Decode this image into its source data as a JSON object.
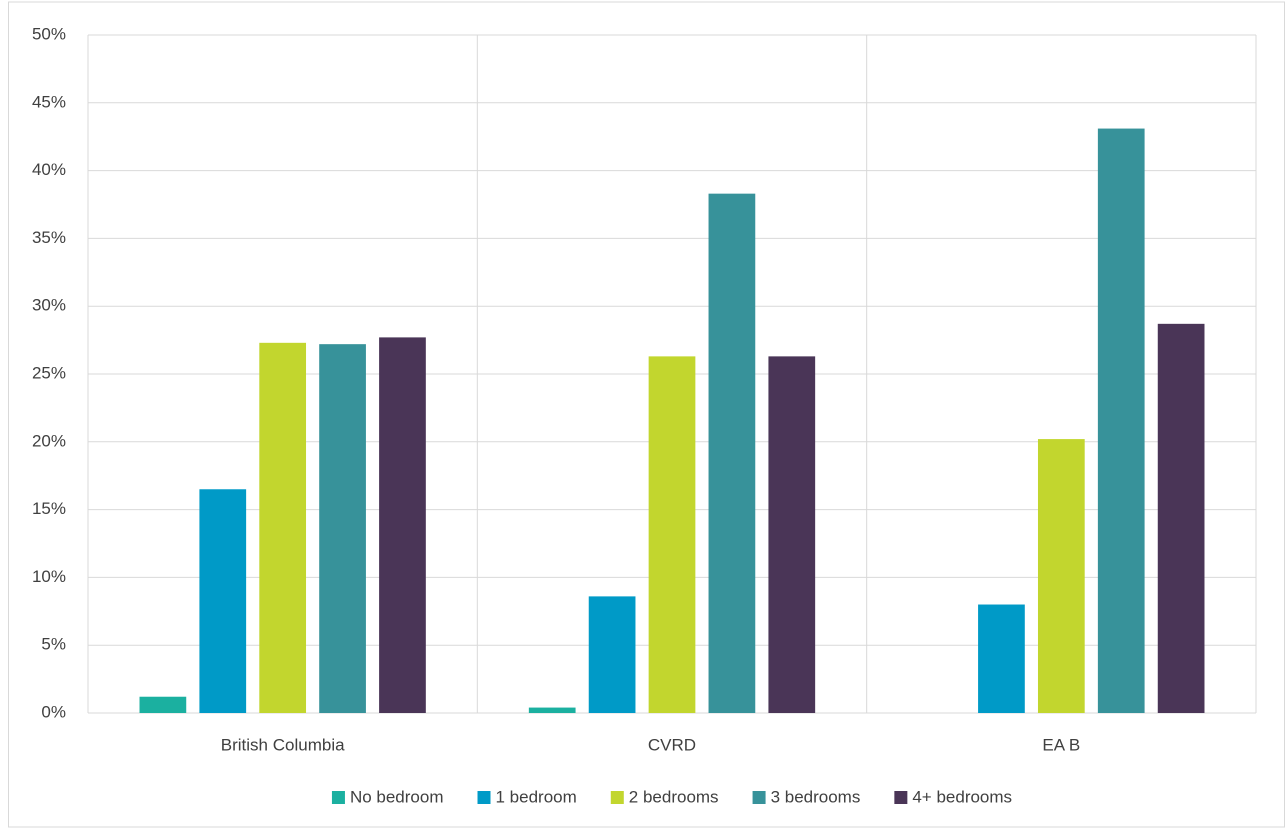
{
  "chart_data": {
    "type": "bar",
    "categories": [
      "British Columbia",
      "CVRD",
      "EA B"
    ],
    "series": [
      {
        "name": "No bedroom",
        "color": "#1bb0a0",
        "values": [
          1.2,
          0.4,
          0
        ]
      },
      {
        "name": "1 bedroom",
        "color": "#009ac7",
        "values": [
          16.5,
          8.6,
          8.0
        ]
      },
      {
        "name": "2 bedrooms",
        "color": "#c2d62e",
        "values": [
          27.3,
          26.3,
          20.2
        ]
      },
      {
        "name": "3 bedrooms",
        "color": "#37929a",
        "values": [
          27.2,
          38.3,
          43.1
        ]
      },
      {
        "name": "4+ bedrooms",
        "color": "#4a3557",
        "values": [
          27.7,
          26.3,
          28.7
        ]
      }
    ],
    "ylim": [
      0,
      50
    ],
    "yticks": [
      {
        "value": 0,
        "label": "0%"
      },
      {
        "value": 5,
        "label": "5%"
      },
      {
        "value": 10,
        "label": "10%"
      },
      {
        "value": 15,
        "label": "15%"
      },
      {
        "value": 20,
        "label": "20%"
      },
      {
        "value": 25,
        "label": "25%"
      },
      {
        "value": 30,
        "label": "30%"
      },
      {
        "value": 35,
        "label": "35%"
      },
      {
        "value": 40,
        "label": "40%"
      },
      {
        "value": 45,
        "label": "45%"
      },
      {
        "value": 50,
        "label": "50%"
      }
    ],
    "grid": true,
    "legend": "bottom"
  }
}
